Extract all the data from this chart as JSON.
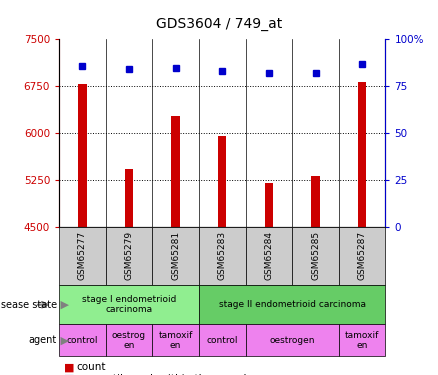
{
  "title": "GDS3604 / 749_at",
  "samples": [
    "GSM65277",
    "GSM65279",
    "GSM65281",
    "GSM65283",
    "GSM65284",
    "GSM65285",
    "GSM65287"
  ],
  "counts": [
    6780,
    5430,
    6270,
    5960,
    5200,
    5310,
    6820
  ],
  "percentiles": [
    86,
    84,
    85,
    83,
    82,
    82,
    87
  ],
  "ylim_left": [
    4500,
    7500
  ],
  "ylim_right": [
    0,
    100
  ],
  "yticks_left": [
    4500,
    5250,
    6000,
    6750,
    7500
  ],
  "yticks_right": [
    0,
    25,
    50,
    75,
    100
  ],
  "bar_color": "#cc0000",
  "dot_color": "#0000cc",
  "disease_state_row": [
    {
      "label": "stage I endometrioid\ncarcinoma",
      "span": [
        0,
        3
      ],
      "color": "#90ee90"
    },
    {
      "label": "stage II endometrioid carcinoma",
      "span": [
        3,
        7
      ],
      "color": "#66cc66"
    }
  ],
  "agent_row": [
    {
      "label": "control",
      "span": [
        0,
        1
      ],
      "color": "#ee82ee"
    },
    {
      "label": "oestrog\nen",
      "span": [
        1,
        2
      ],
      "color": "#ee82ee"
    },
    {
      "label": "tamoxif\nen",
      "span": [
        2,
        3
      ],
      "color": "#ee82ee"
    },
    {
      "label": "control",
      "span": [
        3,
        4
      ],
      "color": "#ee82ee"
    },
    {
      "label": "oestrogen",
      "span": [
        4,
        6
      ],
      "color": "#ee82ee"
    },
    {
      "label": "tamoxif\nen",
      "span": [
        6,
        7
      ],
      "color": "#ee82ee"
    }
  ],
  "tick_label_color": "#cc0000",
  "right_tick_color": "#0000cc",
  "grid_color": "black",
  "background_color": "white",
  "sample_bg_color": "#cccccc"
}
